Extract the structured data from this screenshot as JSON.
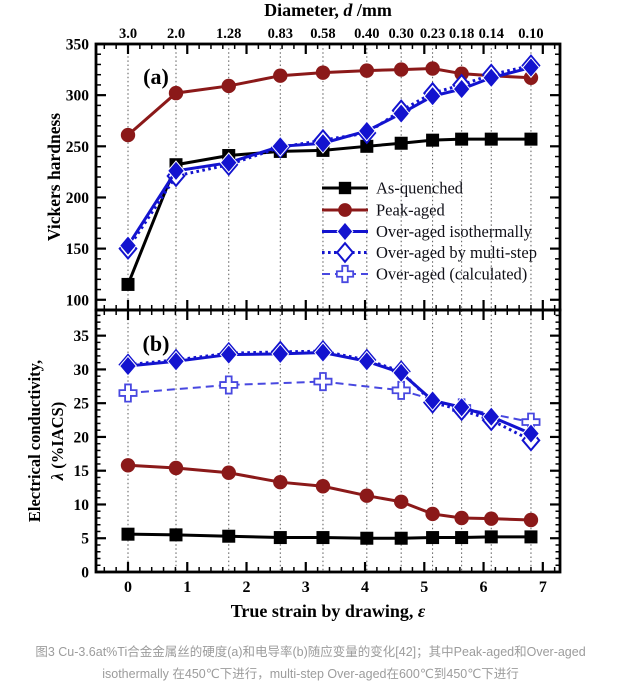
{
  "figure": {
    "panel_a_label": "(a)",
    "panel_b_label": "(b)"
  },
  "caption": {
    "line1": "图3 Cu-3.6at%Ti合金金属丝的硬度(a)和电导率(b)随应变量的变化[42]；其中Peak-aged和Over-aged",
    "line2": "isothermally 在450℃下进行，multi-step Over-aged在600℃到450℃下进行"
  },
  "axes": {
    "top": {
      "title_pre": "Diameter, ",
      "title_italic": "d",
      "title_post": " /mm",
      "labels": [
        "3.0",
        "2.0",
        "1.28",
        "0.83",
        "0.58",
        "0.40",
        "0.30",
        "0.23",
        "0.18",
        "0.14",
        "0.10"
      ],
      "strains": [
        0,
        0.81,
        1.7,
        2.57,
        3.29,
        4.03,
        4.61,
        5.14,
        5.63,
        6.13,
        6.8
      ]
    },
    "bottom": {
      "title_pre": "True strain by drawing, ",
      "title_italic": "ε",
      "ticks": [
        0,
        1,
        2,
        3,
        4,
        5,
        6,
        7
      ],
      "xlim": [
        -0.54,
        7.29
      ],
      "minor_step": 0.2
    }
  },
  "chart_data": [
    {
      "type": "line",
      "panel": "a",
      "ylabel": "Vickers hardness",
      "ylim": [
        90,
        350
      ],
      "yticks": [
        100,
        150,
        200,
        250,
        300,
        350
      ],
      "y_minor_step": 10,
      "grid": "vertical-dotted",
      "legend_position": "lower right",
      "x": [
        0,
        0.81,
        1.7,
        2.57,
        3.29,
        4.03,
        4.61,
        5.14,
        5.63,
        6.13,
        6.8
      ],
      "series": [
        {
          "name": "As-quenched",
          "color": "#000000",
          "marker": "square",
          "line": "solid",
          "values": [
            115,
            232,
            241,
            245,
            246,
            250,
            253,
            256,
            257,
            257,
            257
          ]
        },
        {
          "name": "Peak-aged",
          "color": "#8b1919",
          "marker": "circle",
          "line": "solid",
          "values": [
            261,
            302,
            309,
            319,
            322,
            324,
            325,
            326,
            321,
            319,
            317
          ]
        },
        {
          "name": "Over-aged by multi-step",
          "color": "#1313cf",
          "marker": "open-diamond",
          "line": "dotted",
          "values": [
            150,
            221,
            232,
            249,
            256,
            263,
            285,
            302,
            310,
            320,
            329
          ]
        },
        {
          "name": "Over-aged isothermally",
          "color": "#1313cf",
          "marker": "diamond",
          "line": "solid",
          "values": [
            153,
            226,
            234,
            250,
            253,
            265,
            282,
            299,
            306,
            317,
            327
          ]
        }
      ]
    },
    {
      "type": "line",
      "panel": "b",
      "ylabel": "Electrical conductivity, λ (%IACS)",
      "ylabel_line1": "Electrical conductivity,",
      "ylabel_italic": "λ",
      "ylabel_line2_rest": " (%IACS)",
      "ylim": [
        0,
        38.8
      ],
      "yticks": [
        0,
        5,
        10,
        15,
        20,
        25,
        30,
        35
      ],
      "y_minor_step": 1,
      "grid": "vertical-dotted",
      "x": [
        0,
        0.81,
        1.7,
        2.57,
        3.29,
        4.03,
        4.61,
        5.14,
        5.63,
        6.13,
        6.8
      ],
      "series": [
        {
          "name": "As-quenched",
          "color": "#000000",
          "marker": "square",
          "line": "solid",
          "values": [
            5.6,
            5.5,
            5.3,
            5.1,
            5.1,
            5.0,
            5.0,
            5.1,
            5.1,
            5.2,
            5.2
          ]
        },
        {
          "name": "Peak-aged",
          "color": "#8b1919",
          "marker": "circle",
          "line": "solid",
          "values": [
            15.8,
            15.4,
            14.7,
            13.3,
            12.7,
            11.3,
            10.4,
            8.6,
            8.0,
            7.9,
            7.7
          ]
        },
        {
          "name": "Over-aged (calculated)",
          "color": "#4848e0",
          "marker": "open-cross",
          "line": "dashed",
          "x": [
            0,
            1.7,
            3.29,
            4.61,
            5.63,
            6.8
          ],
          "values": [
            26.5,
            27.7,
            28.2,
            26.9,
            24.3,
            22.2
          ]
        },
        {
          "name": "Over-aged by multi-step",
          "color": "#1313cf",
          "marker": "open-diamond",
          "line": "dotted",
          "values": [
            30.7,
            31.4,
            32.4,
            32.6,
            32.7,
            31.4,
            29.7,
            25.1,
            24.0,
            22.5,
            19.5
          ]
        },
        {
          "name": "Over-aged isothermally",
          "color": "#1313cf",
          "marker": "diamond",
          "line": "solid",
          "values": [
            30.5,
            31.2,
            32.2,
            32.3,
            32.5,
            31.2,
            29.5,
            25.4,
            24.4,
            23.0,
            20.5
          ]
        }
      ]
    }
  ],
  "legend": {
    "items": [
      {
        "label": "As-quenched",
        "color": "#000000",
        "marker": "square",
        "line": "solid"
      },
      {
        "label": "Peak-aged",
        "color": "#8b1919",
        "marker": "circle",
        "line": "solid"
      },
      {
        "label": "Over-aged isothermally",
        "color": "#1313cf",
        "marker": "diamond",
        "line": "solid"
      },
      {
        "label": "Over-aged by multi-step",
        "color": "#1313cf",
        "marker": "open-diamond",
        "line": "dotted"
      },
      {
        "label": "Over-aged (calculated)",
        "color": "#4848e0",
        "marker": "open-cross",
        "line": "dashed"
      }
    ]
  }
}
